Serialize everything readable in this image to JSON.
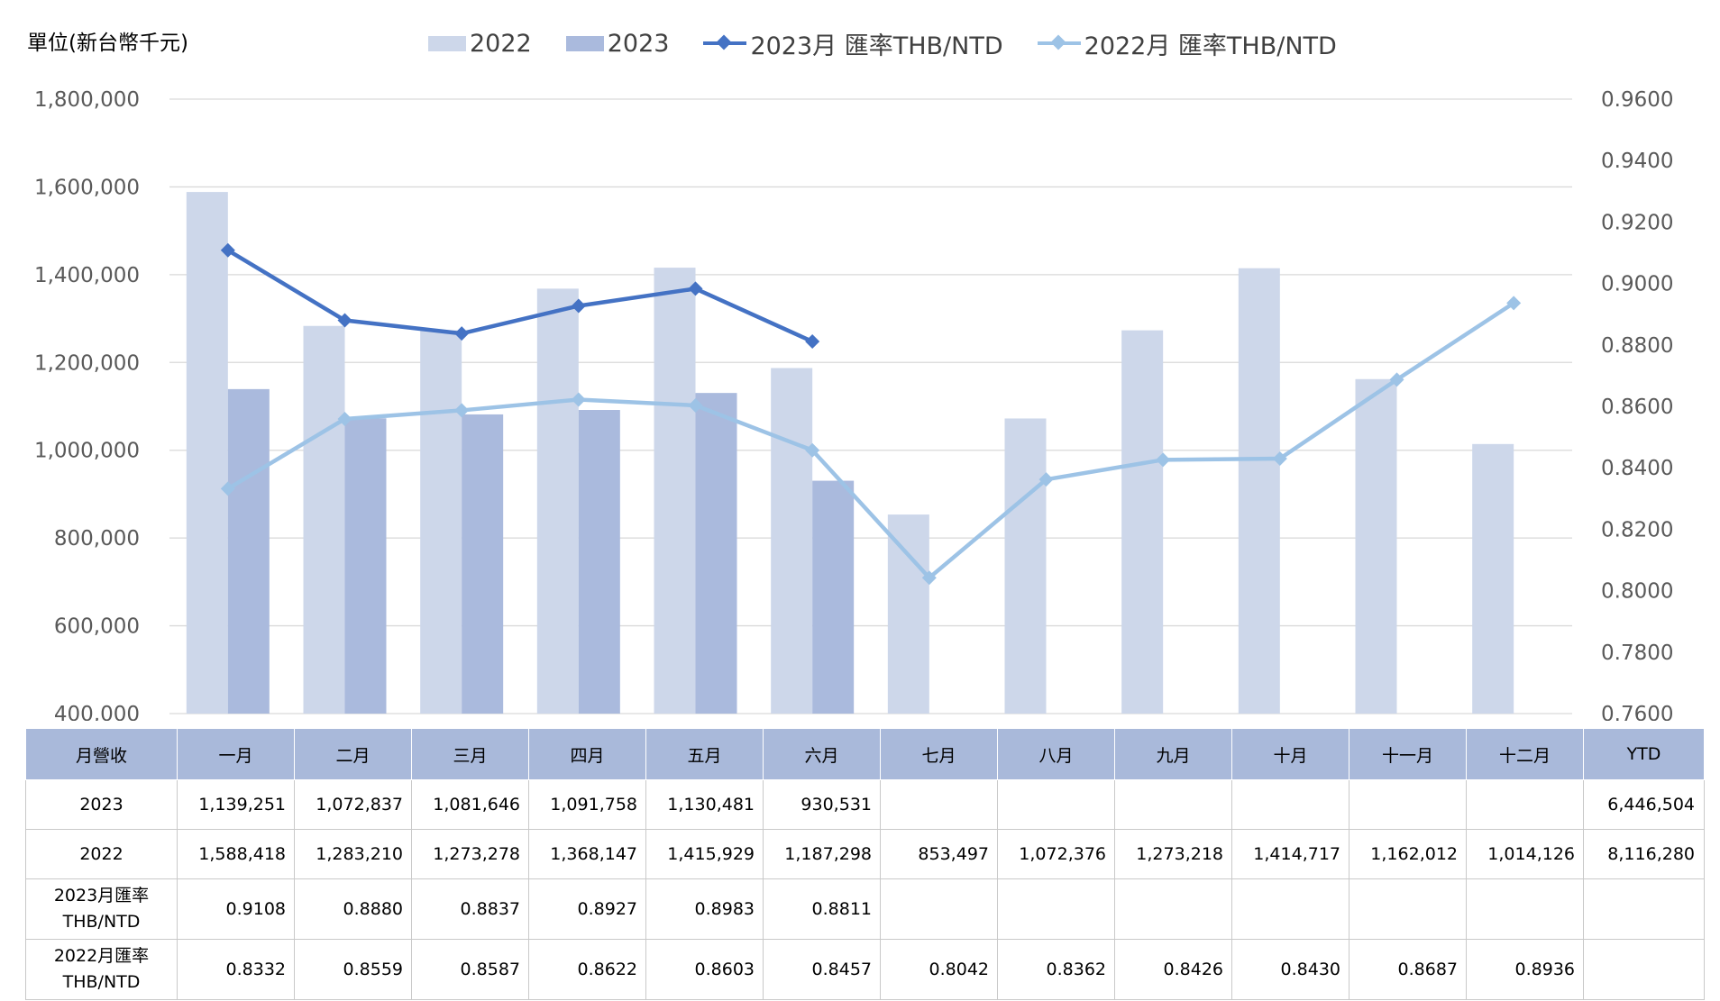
{
  "unit_label": "單位(新台幣千元)",
  "legend": {
    "bar_2022": "2022",
    "bar_2023": "2023",
    "line_2023": "2023月 匯率THB/NTD",
    "line_2022": "2022月 匯率THB/NTD"
  },
  "colors": {
    "bar_2022": "#cdd7ea",
    "bar_2023": "#aabadd",
    "line_2023": "#4472c4",
    "line_2022": "#9dc3e6",
    "gridline": "#d9d9d9",
    "table_header": "#a9b9da"
  },
  "chart_data": {
    "type": "bar",
    "combo": "bar + line (secondary axis)",
    "title": "",
    "categories": [
      "一月",
      "二月",
      "三月",
      "四月",
      "五月",
      "六月",
      "七月",
      "八月",
      "九月",
      "十月",
      "十一月",
      "十二月"
    ],
    "series": [
      {
        "name": "2022",
        "type": "bar",
        "axis": "left",
        "values": [
          1588418,
          1283210,
          1273278,
          1368147,
          1415929,
          1187298,
          853497,
          1072376,
          1273218,
          1414717,
          1162012,
          1014126
        ]
      },
      {
        "name": "2023",
        "type": "bar",
        "axis": "left",
        "values": [
          1139251,
          1072837,
          1081646,
          1091758,
          1130481,
          930531,
          null,
          null,
          null,
          null,
          null,
          null
        ]
      },
      {
        "name": "2023月 匯率THB/NTD",
        "type": "line",
        "axis": "right",
        "values": [
          0.9108,
          0.888,
          0.8837,
          0.8927,
          0.8983,
          0.8811,
          null,
          null,
          null,
          null,
          null,
          null
        ]
      },
      {
        "name": "2022月 匯率THB/NTD",
        "type": "line",
        "axis": "right",
        "values": [
          0.8332,
          0.8559,
          0.8587,
          0.8622,
          0.8603,
          0.8457,
          0.8042,
          0.8362,
          0.8426,
          0.843,
          0.8687,
          0.8936
        ]
      }
    ],
    "y_left": {
      "min": 400000,
      "max": 1800000,
      "step": 200000,
      "ticks": [
        "400,000",
        "600,000",
        "800,000",
        "1,000,000",
        "1,200,000",
        "1,400,000",
        "1,600,000",
        "1,800,000"
      ]
    },
    "y_right": {
      "min": 0.76,
      "max": 0.96,
      "step": 0.02,
      "ticks": [
        "0.7600",
        "0.7800",
        "0.8000",
        "0.8200",
        "0.8400",
        "0.8600",
        "0.8800",
        "0.9000",
        "0.9200",
        "0.9400",
        "0.9600"
      ]
    },
    "grid": true,
    "legend_position": "top"
  },
  "table": {
    "header_label": "月營收",
    "months": [
      "一月",
      "二月",
      "三月",
      "四月",
      "五月",
      "六月",
      "七月",
      "八月",
      "九月",
      "十月",
      "十一月",
      "十二月"
    ],
    "ytd_label": "YTD",
    "rows": [
      {
        "label": "2023",
        "cells": [
          "1,139,251",
          "1,072,837",
          "1,081,646",
          "1,091,758",
          "1,130,481",
          "930,531",
          "",
          "",
          "",
          "",
          "",
          ""
        ],
        "ytd": "6,446,504"
      },
      {
        "label": "2022",
        "cells": [
          "1,588,418",
          "1,283,210",
          "1,273,278",
          "1,368,147",
          "1,415,929",
          "1,187,298",
          "853,497",
          "1,072,376",
          "1,273,218",
          "1,414,717",
          "1,162,012",
          "1,014,126"
        ],
        "ytd": "8,116,280"
      },
      {
        "label": "2023月匯率 THB/NTD",
        "cells": [
          "0.9108",
          "0.8880",
          "0.8837",
          "0.8927",
          "0.8983",
          "0.8811",
          "",
          "",
          "",
          "",
          "",
          ""
        ],
        "ytd": ""
      },
      {
        "label": "2022月匯率 THB/NTD",
        "cells": [
          "0.8332",
          "0.8559",
          "0.8587",
          "0.8622",
          "0.8603",
          "0.8457",
          "0.8042",
          "0.8362",
          "0.8426",
          "0.8430",
          "0.8687",
          "0.8936"
        ],
        "ytd": ""
      }
    ]
  }
}
